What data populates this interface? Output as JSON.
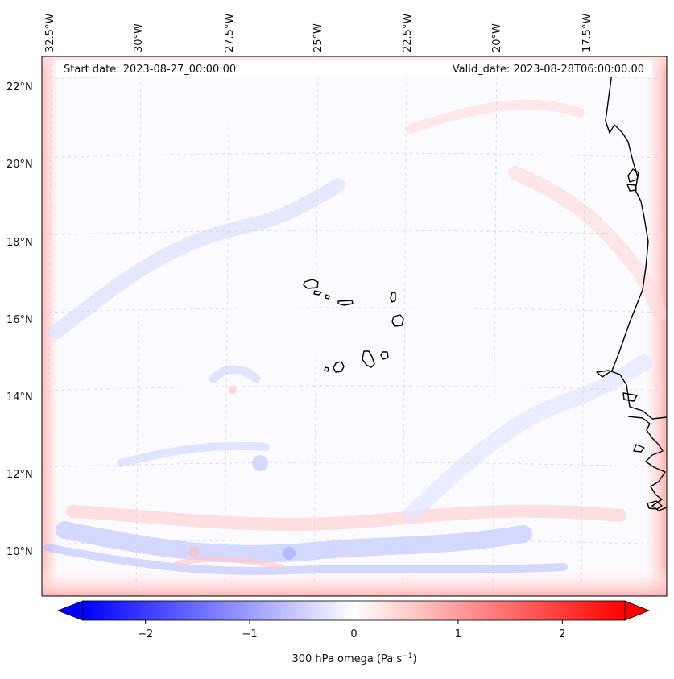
{
  "map": {
    "start_date_label": "Start date: 2023-08-27_00:00:00",
    "valid_date_label": "Valid_date: 2023-08-28T06:00:00.00",
    "top_longitude_labels": [
      "32.5°W",
      "30°W",
      "27.5°W",
      "25°W",
      "22.5°W",
      "20°W",
      "17.5°W"
    ],
    "left_latitude_labels": [
      "22°N",
      "20°N",
      "18°N",
      "16°N",
      "14°N",
      "12°N",
      "10°N"
    ]
  },
  "colorbar": {
    "label": "300 hPa omega (Pa s",
    "label_superscript": "−1",
    "label_suffix": ")",
    "ticks": [
      "−2",
      "−1",
      "0",
      "1",
      "2"
    ],
    "min_value": -2.6,
    "max_value": 2.6,
    "tick_values": [
      -2,
      -1,
      0,
      1,
      2
    ],
    "colors": [
      "#0000ff",
      "#ffffff",
      "#ff0000"
    ]
  }
}
